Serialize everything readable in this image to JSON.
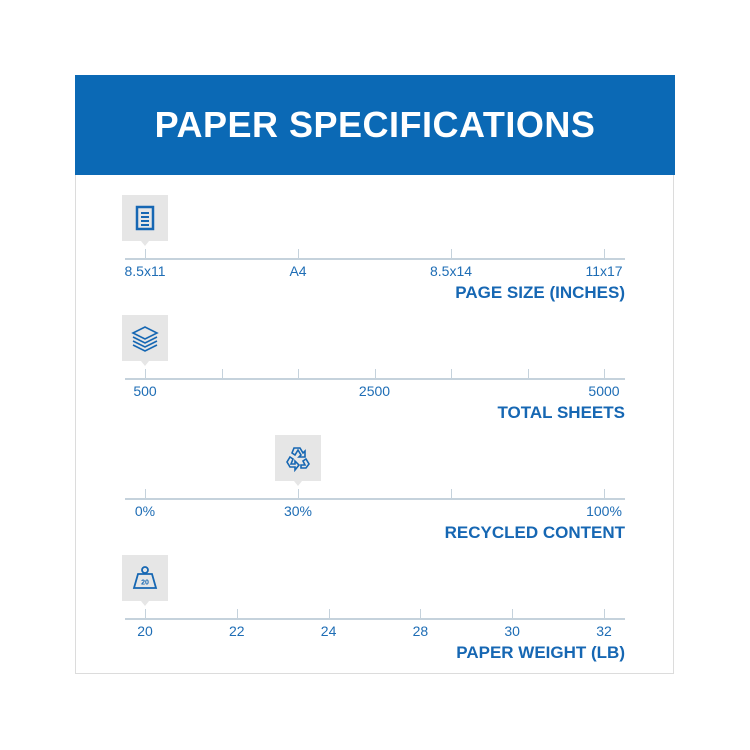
{
  "header": {
    "title": "PAPER SPECIFICATIONS"
  },
  "colors": {
    "brand": "#0b69b5",
    "text": "#1e6db5",
    "axis": "#c5d2dc",
    "marker_bg": "#e6e6e6"
  },
  "rows": [
    {
      "title": "PAGE SIZE (INCHES)",
      "icon": "document-icon",
      "ticks": [
        "8.5x11",
        "A4",
        "8.5x14",
        "11x17"
      ],
      "labeled": [
        true,
        true,
        true,
        true
      ],
      "selected": "8.5x11"
    },
    {
      "title": "TOTAL SHEETS",
      "icon": "paper-stack-icon",
      "ticks": [
        "500",
        "",
        "",
        "2500",
        "",
        "",
        "5000"
      ],
      "labeled": [
        true,
        false,
        false,
        true,
        false,
        false,
        true
      ],
      "selected": "500"
    },
    {
      "title": "RECYCLED CONTENT",
      "icon": "recycle-icon",
      "ticks": [
        "0%",
        "30%",
        "",
        "100%"
      ],
      "labeled": [
        true,
        true,
        false,
        true
      ],
      "selected": "30%"
    },
    {
      "title": "PAPER WEIGHT (LB)",
      "icon": "weight-icon",
      "ticks": [
        "20",
        "22",
        "24",
        "28",
        "30",
        "32"
      ],
      "labeled": [
        true,
        true,
        true,
        true,
        true,
        true
      ],
      "selected": "20",
      "icon_text": "20"
    }
  ]
}
